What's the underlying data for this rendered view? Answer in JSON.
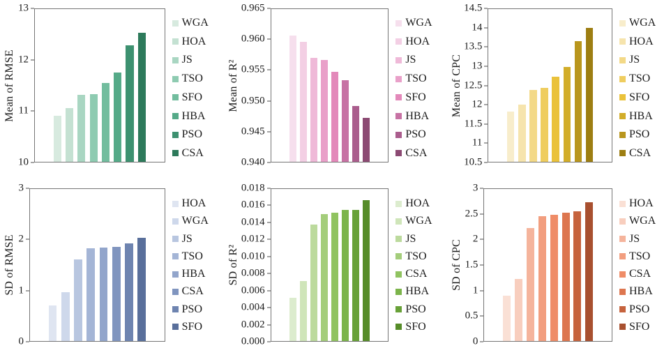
{
  "figure": {
    "background": "#ffffff",
    "rows": 2,
    "cols": 3
  },
  "chart_data": [
    {
      "type": "bar",
      "title": "",
      "xlabel": "",
      "ylabel": "Mean of RMSE",
      "ylim": [
        10,
        13
      ],
      "yticks": [
        "13",
        "12",
        "11",
        "10"
      ],
      "grid": false,
      "legend_position": "right",
      "categories": [
        "WGA",
        "HOA",
        "JS",
        "TSO",
        "SFO",
        "HBA",
        "PSO",
        "CSA"
      ],
      "values": [
        10.91,
        11.06,
        11.31,
        11.33,
        11.55,
        11.75,
        12.29,
        12.54
      ],
      "colors": [
        "#d7eadf",
        "#c4e1d2",
        "#a9d6c2",
        "#8ecbb1",
        "#72bd9e",
        "#55aa88",
        "#3d9170",
        "#2d7a5b"
      ]
    },
    {
      "type": "bar",
      "title": "",
      "xlabel": "",
      "ylabel": "Mean of R²",
      "ylim": [
        0.94,
        0.965
      ],
      "yticks": [
        "0.965",
        "0.960",
        "0.955",
        "0.950",
        "0.945",
        "0.940"
      ],
      "grid": false,
      "legend_position": "right",
      "categories": [
        "WGA",
        "HOA",
        "JS",
        "TSO",
        "SFO",
        "HBA",
        "PSO",
        "CSA"
      ],
      "values": [
        0.9607,
        0.9596,
        0.957,
        0.9567,
        0.9547,
        0.9534,
        0.9491,
        0.9472
      ],
      "colors": [
        "#f6dfed",
        "#f3cfe4",
        "#efb9d8",
        "#e9a0c9",
        "#e389ba",
        "#c772a4",
        "#aa5d8d",
        "#8c4a73"
      ]
    },
    {
      "type": "bar",
      "title": "",
      "xlabel": "",
      "ylabel": "Mean of CPC",
      "ylim": [
        10.5,
        14.5
      ],
      "yticks": [
        "14.5",
        "14",
        "13.5",
        "13",
        "12.5",
        "12",
        "11.5",
        "11",
        "10.5"
      ],
      "grid": false,
      "legend_position": "right",
      "categories": [
        "WGA",
        "HOA",
        "JS",
        "TSO",
        "SFO",
        "HBA",
        "PSO",
        "CSA"
      ],
      "values": [
        11.81,
        12.0,
        12.39,
        12.43,
        12.73,
        12.98,
        13.66,
        14.0
      ],
      "colors": [
        "#f8edcb",
        "#f6e4ad",
        "#f3d987",
        "#efcd5f",
        "#eac23b",
        "#d2ad29",
        "#b9961d",
        "#9d7e12"
      ]
    },
    {
      "type": "bar",
      "title": "",
      "xlabel": "",
      "ylabel": "SD of RMSE",
      "ylim": [
        0,
        3
      ],
      "yticks": [
        "3",
        "2",
        "1",
        "0"
      ],
      "grid": false,
      "legend_position": "right",
      "categories": [
        "HOA",
        "WGA",
        "JS",
        "TSO",
        "HBA",
        "CSA",
        "PSO",
        "SFO"
      ],
      "values": [
        0.7,
        0.97,
        1.61,
        1.83,
        1.85,
        1.86,
        1.92,
        2.04
      ],
      "colors": [
        "#dfe5f1",
        "#ced8eb",
        "#b8c6e0",
        "#a4b5d6",
        "#92a5cb",
        "#8095bf",
        "#6e84b0",
        "#596f9b"
      ]
    },
    {
      "type": "bar",
      "title": "",
      "xlabel": "",
      "ylabel": "SD of R²",
      "ylim": [
        0,
        0.018
      ],
      "yticks": [
        "0.018",
        "0.016",
        "0.014",
        "0.012",
        "0.010",
        "0.008",
        "0.006",
        "0.004",
        "0.002",
        "0.000"
      ],
      "grid": false,
      "legend_position": "right",
      "categories": [
        "HOA",
        "WGA",
        "JS",
        "TSO",
        "CSA",
        "HBA",
        "PSO",
        "SFO"
      ],
      "values": [
        0.0051,
        0.0071,
        0.0138,
        0.015,
        0.0152,
        0.0155,
        0.0155,
        0.0167
      ],
      "colors": [
        "#dcecce",
        "#cfe5b9",
        "#bcda9d",
        "#a4cd7b",
        "#90c360",
        "#7cb44b",
        "#68a138",
        "#568c29"
      ]
    },
    {
      "type": "bar",
      "title": "",
      "xlabel": "",
      "ylabel": "SD of CPC",
      "ylim": [
        0,
        3
      ],
      "yticks": [
        "3",
        "2.5",
        "2",
        "1.5",
        "1",
        "0.5",
        "0"
      ],
      "grid": false,
      "legend_position": "right",
      "categories": [
        "HOA",
        "WGA",
        "JS",
        "TSO",
        "CSA",
        "HBA",
        "PSO",
        "SFO"
      ],
      "values": [
        0.9,
        1.23,
        2.23,
        2.47,
        2.49,
        2.53,
        2.56,
        2.74
      ],
      "colors": [
        "#fae0d5",
        "#f8cebe",
        "#f5b49c",
        "#f29e7f",
        "#ef8c67",
        "#dd764f",
        "#c6633d",
        "#a8502f"
      ]
    }
  ]
}
